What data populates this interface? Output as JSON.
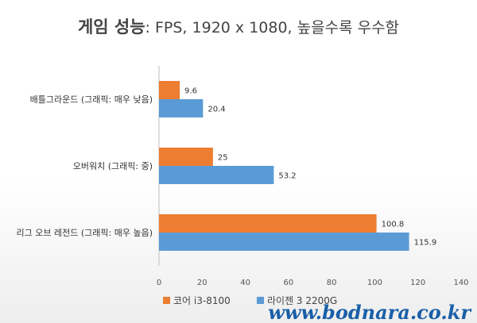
{
  "chart_data": {
    "type": "bar",
    "orientation": "horizontal",
    "title_bold": "게임 성능",
    "title_rest": ": FPS, 1920 x 1080, 높을수록 우수함",
    "categories": [
      "배틀그라운드 (그래픽: 매우 낮음)",
      "오버워치 (그래픽: 중)",
      "리그 오브 레전드 (그래픽: 매우 높음)"
    ],
    "series": [
      {
        "name": "코어 i3-8100",
        "color": "#ed7d31",
        "values": [
          9.6,
          25,
          100.8
        ]
      },
      {
        "name": "라이젠 3 2200G",
        "color": "#5b9bd5",
        "values": [
          20.4,
          53.2,
          115.9
        ]
      }
    ],
    "xlim": [
      0,
      140
    ],
    "xticks": [
      0,
      20,
      40,
      60,
      80,
      100,
      120,
      140
    ],
    "grid": false,
    "legend_position": "bottom"
  },
  "watermark": "www.bodnara.co.kr"
}
